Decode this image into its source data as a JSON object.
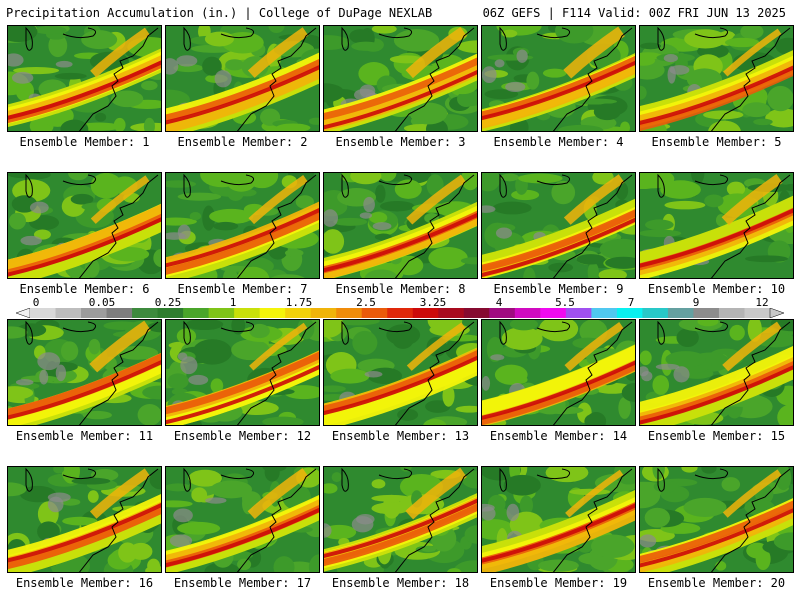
{
  "header": {
    "title": "Precipitation Accumulation (in.) | College of DuPage NEXLAB",
    "run_info": "06Z GEFS | F114 Valid: 00Z FRI JUN 13 2025"
  },
  "panels": [
    {
      "label": "Ensemble Member: 1"
    },
    {
      "label": "Ensemble Member: 2"
    },
    {
      "label": "Ensemble Member: 3"
    },
    {
      "label": "Ensemble Member: 4"
    },
    {
      "label": "Ensemble Member: 5"
    },
    {
      "label": "Ensemble Member: 6"
    },
    {
      "label": "Ensemble Member: 7"
    },
    {
      "label": "Ensemble Member: 8"
    },
    {
      "label": "Ensemble Member: 9"
    },
    {
      "label": "Ensemble Member: 10"
    },
    {
      "label": "Ensemble Member: 11"
    },
    {
      "label": "Ensemble Member: 12"
    },
    {
      "label": "Ensemble Member: 13"
    },
    {
      "label": "Ensemble Member: 14"
    },
    {
      "label": "Ensemble Member: 15"
    },
    {
      "label": "Ensemble Member: 16"
    },
    {
      "label": "Ensemble Member: 17"
    },
    {
      "label": "Ensemble Member: 18"
    },
    {
      "label": "Ensemble Member: 19"
    },
    {
      "label": "Ensemble Member: 20"
    }
  ],
  "colorbar": {
    "tick_labels": [
      "0",
      "0.05",
      "0.25",
      "1",
      "1.75",
      "2.5",
      "3.25",
      "4",
      "5.5",
      "7",
      "9",
      "12"
    ],
    "colors": [
      "#d8d8d8",
      "#bdbdbd",
      "#9c9c9c",
      "#7e7e7e",
      "#3d8a3d",
      "#2e7d2e",
      "#4aa52a",
      "#7fc418",
      "#c8e00a",
      "#f4f40a",
      "#f2d20a",
      "#f0b40a",
      "#f08c0a",
      "#ea5a0a",
      "#e0280a",
      "#cc0a0a",
      "#a80a1e",
      "#860a30",
      "#a00a80",
      "#d00ac0",
      "#f00af0",
      "#a050f0",
      "#50c8f0",
      "#0af0f0",
      "#28c8c8",
      "#64a0a0",
      "#8c8c8c",
      "#b4b4b4",
      "#c8c8c8"
    ]
  }
}
